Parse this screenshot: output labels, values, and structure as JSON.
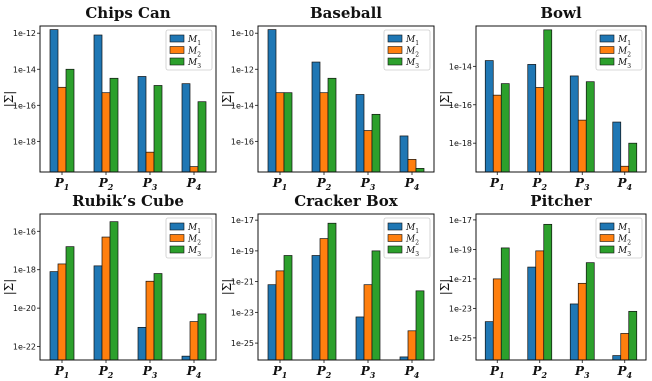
{
  "colors": [
    "#1f77b4",
    "#ff7f0e",
    "#2ca02c"
  ],
  "chart_data": [
    {
      "type": "bar",
      "title": "Chips Can",
      "ylabel": "|Σ|",
      "log_scale": true,
      "categories": [
        {
          "base": "P",
          "sub": "1"
        },
        {
          "base": "P",
          "sub": "2"
        },
        {
          "base": "P",
          "sub": "3"
        },
        {
          "base": "P",
          "sub": "4"
        }
      ],
      "ylim_exp": [
        -19.7,
        -11.6
      ],
      "yticks": [
        {
          "label": "1e-12",
          "exp": -12
        },
        {
          "label": "1e-14",
          "exp": -14
        },
        {
          "label": "1e-16",
          "exp": -16
        },
        {
          "label": "1e-18",
          "exp": -18
        }
      ],
      "legend": {
        "position": "top-right",
        "entries": [
          {
            "base": "M",
            "sub": "1"
          },
          {
            "base": "M",
            "sub": "2"
          },
          {
            "base": "M",
            "sub": "3"
          }
        ]
      },
      "series": [
        {
          "name": "M1",
          "exponents": [
            -11.8,
            -12.1,
            -14.4,
            -14.8
          ]
        },
        {
          "name": "M2",
          "exponents": [
            -15.0,
            -15.3,
            -18.6,
            -19.4
          ]
        },
        {
          "name": "M3",
          "exponents": [
            -14.0,
            -14.5,
            -14.9,
            -15.8
          ]
        }
      ]
    },
    {
      "type": "bar",
      "title": "Baseball",
      "ylabel": "|Σ|",
      "log_scale": true,
      "categories": [
        {
          "base": "P",
          "sub": "1"
        },
        {
          "base": "P",
          "sub": "2"
        },
        {
          "base": "P",
          "sub": "3"
        },
        {
          "base": "P",
          "sub": "4"
        }
      ],
      "ylim_exp": [
        -17.7,
        -9.6
      ],
      "yticks": [
        {
          "label": "1e-10",
          "exp": -10
        },
        {
          "label": "1e-12",
          "exp": -12
        },
        {
          "label": "1e-14",
          "exp": -14
        },
        {
          "label": "1e-16",
          "exp": -16
        }
      ],
      "legend": {
        "position": "top-right",
        "entries": [
          {
            "base": "M",
            "sub": "1"
          },
          {
            "base": "M",
            "sub": "2"
          },
          {
            "base": "M",
            "sub": "3"
          }
        ]
      },
      "series": [
        {
          "name": "M1",
          "exponents": [
            -9.8,
            -11.6,
            -13.4,
            -15.7
          ]
        },
        {
          "name": "M2",
          "exponents": [
            -13.3,
            -13.3,
            -15.4,
            -17.0
          ]
        },
        {
          "name": "M3",
          "exponents": [
            -13.3,
            -12.5,
            -14.5,
            -17.5
          ]
        }
      ]
    },
    {
      "type": "bar",
      "title": "Bowl",
      "ylabel": "|Σ|",
      "log_scale": true,
      "categories": [
        {
          "base": "P",
          "sub": "1"
        },
        {
          "base": "P",
          "sub": "2"
        },
        {
          "base": "P",
          "sub": "3"
        },
        {
          "base": "P",
          "sub": "4"
        }
      ],
      "ylim_exp": [
        -19.5,
        -11.9
      ],
      "yticks": [
        {
          "label": "1e-14",
          "exp": -14
        },
        {
          "label": "1e-16",
          "exp": -16
        },
        {
          "label": "1e-18",
          "exp": -18
        }
      ],
      "legend": {
        "position": "top-right",
        "entries": [
          {
            "base": "M",
            "sub": "1"
          },
          {
            "base": "M",
            "sub": "2"
          },
          {
            "base": "M",
            "sub": "3"
          }
        ]
      },
      "series": [
        {
          "name": "M1",
          "exponents": [
            -13.7,
            -13.9,
            -14.5,
            -16.9
          ]
        },
        {
          "name": "M2",
          "exponents": [
            -15.5,
            -15.1,
            -16.8,
            -19.2
          ]
        },
        {
          "name": "M3",
          "exponents": [
            -14.9,
            -12.1,
            -14.8,
            -18.0
          ]
        }
      ]
    },
    {
      "type": "bar",
      "title": "Rubik’s Cube",
      "ylabel": "|Σ|",
      "log_scale": true,
      "categories": [
        {
          "base": "P",
          "sub": "1"
        },
        {
          "base": "P",
          "sub": "2"
        },
        {
          "base": "P",
          "sub": "3"
        },
        {
          "base": "P",
          "sub": "4"
        }
      ],
      "ylim_exp": [
        -22.7,
        -15.1
      ],
      "yticks": [
        {
          "label": "1e-16",
          "exp": -16
        },
        {
          "label": "1e-18",
          "exp": -18
        },
        {
          "label": "1e-20",
          "exp": -20
        },
        {
          "label": "1e-22",
          "exp": -22
        }
      ],
      "legend": {
        "position": "top-right",
        "entries": [
          {
            "base": "M",
            "sub": "1"
          },
          {
            "base": "M",
            "sub": "2"
          },
          {
            "base": "M",
            "sub": "3"
          }
        ]
      },
      "series": [
        {
          "name": "M1",
          "exponents": [
            -18.1,
            -17.8,
            -21.0,
            -22.5
          ]
        },
        {
          "name": "M2",
          "exponents": [
            -17.7,
            -16.3,
            -18.6,
            -20.7
          ]
        },
        {
          "name": "M3",
          "exponents": [
            -16.8,
            -15.5,
            -18.2,
            -20.3
          ]
        }
      ]
    },
    {
      "type": "bar",
      "title": "Cracker Box",
      "ylabel": "|Σ|",
      "log_scale": true,
      "categories": [
        {
          "base": "P",
          "sub": "1"
        },
        {
          "base": "P",
          "sub": "2"
        },
        {
          "base": "P",
          "sub": "3"
        },
        {
          "base": "P",
          "sub": "4"
        }
      ],
      "ylim_exp": [
        -26.1,
        -16.6
      ],
      "yticks": [
        {
          "label": "1e-17",
          "exp": -17
        },
        {
          "label": "1e-19",
          "exp": -19
        },
        {
          "label": "1e-21",
          "exp": -21
        },
        {
          "label": "1e-23",
          "exp": -23
        },
        {
          "label": "1e-25",
          "exp": -25
        }
      ],
      "legend": {
        "position": "top-right",
        "entries": [
          {
            "base": "M",
            "sub": "1"
          },
          {
            "base": "M",
            "sub": "2"
          },
          {
            "base": "M",
            "sub": "3"
          }
        ]
      },
      "series": [
        {
          "name": "M1",
          "exponents": [
            -21.2,
            -19.3,
            -23.3,
            -25.9
          ]
        },
        {
          "name": "M2",
          "exponents": [
            -20.3,
            -18.2,
            -21.2,
            -24.2
          ]
        },
        {
          "name": "M3",
          "exponents": [
            -19.3,
            -17.2,
            -19.0,
            -21.6
          ]
        }
      ]
    },
    {
      "type": "bar",
      "title": "Pitcher",
      "ylabel": "|Σ|",
      "log_scale": true,
      "categories": [
        {
          "base": "P",
          "sub": "1"
        },
        {
          "base": "P",
          "sub": "2"
        },
        {
          "base": "P",
          "sub": "3"
        },
        {
          "base": "P",
          "sub": "4"
        }
      ],
      "ylim_exp": [
        -26.5,
        -16.6
      ],
      "yticks": [
        {
          "label": "1e-17",
          "exp": -17
        },
        {
          "label": "1e-19",
          "exp": -19
        },
        {
          "label": "1e-21",
          "exp": -21
        },
        {
          "label": "1e-23",
          "exp": -23
        },
        {
          "label": "1e-25",
          "exp": -25
        }
      ],
      "legend": {
        "position": "top-right",
        "entries": [
          {
            "base": "M",
            "sub": "1"
          },
          {
            "base": "M",
            "sub": "2"
          },
          {
            "base": "M",
            "sub": "3"
          }
        ]
      },
      "series": [
        {
          "name": "M1",
          "exponents": [
            -23.9,
            -20.2,
            -22.7,
            -26.2
          ]
        },
        {
          "name": "M2",
          "exponents": [
            -21.0,
            -19.1,
            -21.3,
            -24.7
          ]
        },
        {
          "name": "M3",
          "exponents": [
            -18.9,
            -17.3,
            -19.9,
            -23.2
          ]
        }
      ]
    }
  ]
}
